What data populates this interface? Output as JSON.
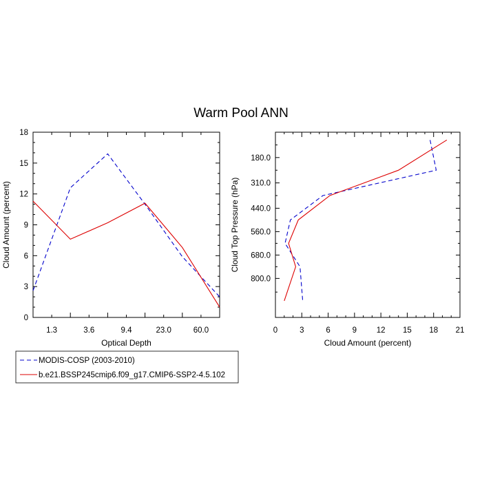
{
  "title": "Warm Pool ANN",
  "colors": {
    "obs": "#0000cc",
    "model": "#dd0000",
    "axis": "#000000"
  },
  "legend": {
    "placement": "bottom-left",
    "entries": [
      {
        "label": "MODIS-COSP (2003-2010)",
        "color": "#0000cc",
        "dash": "dashed"
      },
      {
        "label": "b.e21.BSSP245cmip6.f09_g17.CMIP6-SSP2-4.5.102",
        "color": "#dd0000",
        "dash": "solid"
      }
    ]
  },
  "chart_data": [
    {
      "type": "line",
      "xlabel": "Optical Depth",
      "ylabel": "Cloud Amount (percent)",
      "x_tick_labels": [
        "1.3",
        "3.6",
        "9.4",
        "23.0",
        "60.0"
      ],
      "ylim": [
        0,
        18
      ],
      "y_ticks": [
        0,
        3,
        6,
        9,
        12,
        15,
        18
      ],
      "grid": false,
      "series": [
        {
          "name": "MODIS-COSP (2003-2010)",
          "x": [
            0,
            1,
            2,
            3,
            4,
            5
          ],
          "y": [
            2.6,
            12.6,
            15.9,
            11.0,
            5.9,
            2.0
          ]
        },
        {
          "name": "b.e21.BSSP245cmip6.f09_g17.CMIP6-SSP2-4.5.102",
          "x": [
            0,
            1,
            2,
            3,
            4,
            5
          ],
          "y": [
            11.3,
            7.6,
            9.2,
            11.1,
            6.8,
            1.0
          ]
        }
      ]
    },
    {
      "type": "line",
      "xlabel": "Cloud Amount (percent)",
      "ylabel": "Cloud Top Pressure (hPa)",
      "xlim": [
        0,
        21
      ],
      "x_ticks": [
        0,
        3,
        6,
        9,
        12,
        15,
        18,
        21
      ],
      "y_tick_labels": [
        "180.0",
        "310.0",
        "440.0",
        "560.0",
        "680.0",
        "800.0"
      ],
      "y_inverted": true,
      "grid": false,
      "series": [
        {
          "name": "MODIS-COSP (2003-2010)",
          "y": [
            90,
            245,
            375,
            500,
            620,
            740,
            915
          ],
          "x": [
            17.6,
            18.3,
            5.4,
            1.7,
            1.1,
            2.8,
            3.1
          ]
        },
        {
          "name": "b.e21.BSSP245cmip6.f09_g17.CMIP6-SSP2-4.5.102",
          "y": [
            90,
            245,
            375,
            500,
            620,
            740,
            915
          ],
          "x": [
            19.5,
            14.0,
            6.2,
            2.6,
            1.5,
            2.3,
            1.0
          ]
        }
      ]
    }
  ]
}
